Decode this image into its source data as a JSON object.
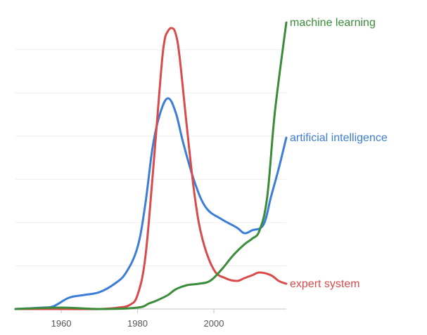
{
  "chart_data": {
    "type": "line",
    "title": "",
    "xlabel": "",
    "ylabel": "",
    "xlim": [
      1948,
      2019
    ],
    "ylim": [
      0,
      100
    ],
    "grid": true,
    "xticks": [
      1960,
      1980,
      2000
    ],
    "xtick_labels": [
      "1960",
      "1980",
      "2000"
    ],
    "legend": "inline-right",
    "series": [
      {
        "name": "artificial intelligence",
        "color": "#3b7dd8",
        "x": [
          1948,
          1955,
          1958,
          1962,
          1966,
          1970,
          1974,
          1977,
          1980,
          1982,
          1984,
          1986,
          1988,
          1990,
          1992,
          1995,
          1998,
          2002,
          2006,
          2008,
          2010,
          2013,
          2015,
          2017,
          2019
        ],
        "y": [
          0,
          0.5,
          1,
          4,
          5,
          6,
          9,
          13,
          22,
          37,
          58,
          70,
          75,
          70,
          59,
          45,
          36,
          32,
          29,
          27,
          28,
          30,
          40,
          50,
          61
        ]
      },
      {
        "name": "expert system",
        "color": "#d94a4a",
        "x": [
          1948,
          1960,
          1970,
          1975,
          1978,
          1980,
          1982,
          1984,
          1986,
          1987,
          1988,
          1989,
          1990,
          1991,
          1993,
          1995,
          1997,
          2000,
          2003,
          2006,
          2008,
          2010,
          2012,
          2015,
          2017,
          2019
        ],
        "y": [
          0,
          0,
          0,
          0.5,
          1.5,
          5,
          18,
          48,
          82,
          95,
          99,
          100,
          98,
          90,
          64,
          40,
          25,
          14,
          11,
          10,
          11,
          12,
          13,
          12,
          10,
          9
        ]
      },
      {
        "name": "machine learning",
        "color": "#3a8b3a",
        "x": [
          1948,
          1960,
          1970,
          1980,
          1983,
          1985,
          1988,
          1990,
          1993,
          1996,
          1999,
          2002,
          2005,
          2008,
          2010,
          2012,
          2014,
          2016,
          2019
        ],
        "y": [
          0,
          0.5,
          0,
          0.5,
          2,
          3,
          5,
          7,
          8.5,
          9,
          10,
          14,
          19,
          23,
          25,
          28,
          40,
          70,
          102
        ]
      }
    ]
  }
}
